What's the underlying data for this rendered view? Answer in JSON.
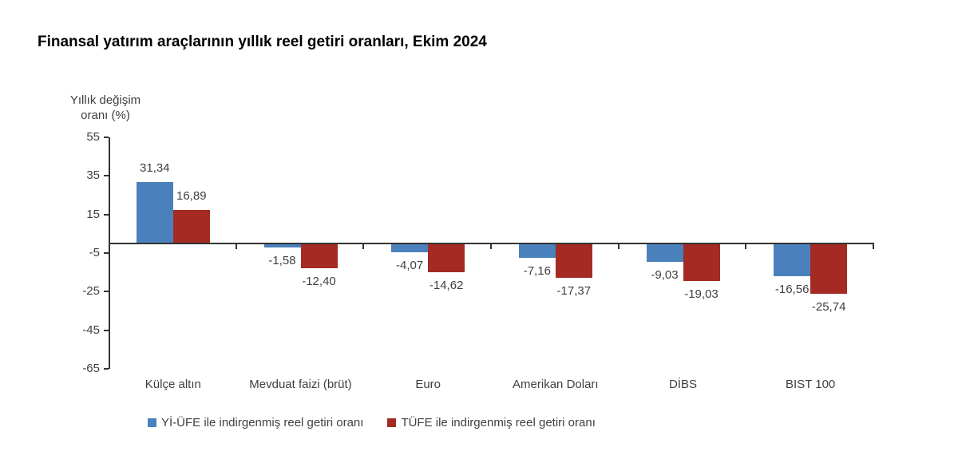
{
  "title": "Finansal yatırım araçlarının yıllık reel getiri oranları, Ekim 2024",
  "y_axis": {
    "label_line1": "Yıllık değişim",
    "label_line2": "oranı (%)"
  },
  "chart_data": {
    "type": "bar",
    "title": "Finansal yatırım araçlarının yıllık reel getiri oranları, Ekim 2024",
    "categories": [
      "Külçe altın",
      "Mevduat faizi (brüt)",
      "Euro",
      "Amerikan Doları",
      "DİBS",
      "BIST 100"
    ],
    "series": [
      {
        "name": "Yİ-ÜFE ile indirgenmiş reel getiri oranı",
        "color": "#4A81BD",
        "values": [
          31.34,
          -1.58,
          -4.07,
          -7.16,
          -9.03,
          -16.56
        ]
      },
      {
        "name": "TÜFE ile indirgenmiş reel getiri oranı",
        "color": "#A32B23",
        "values": [
          16.89,
          -12.4,
          -14.62,
          -17.37,
          -19.03,
          -25.74
        ]
      }
    ],
    "ylabel": "Yıllık değişim oranı (%)",
    "yticks": [
      55,
      35,
      15,
      -5,
      -25,
      -45,
      -65
    ],
    "ylim": [
      -65,
      55
    ],
    "grid": false,
    "legend_position": "bottom",
    "decimal_separator": ","
  },
  "colors": {
    "series_blue": "#4A81BD",
    "series_red": "#A32B23",
    "axis": "#333333",
    "text": "#3F3F3F",
    "title": "#000000",
    "background": "#FFFFFF"
  }
}
